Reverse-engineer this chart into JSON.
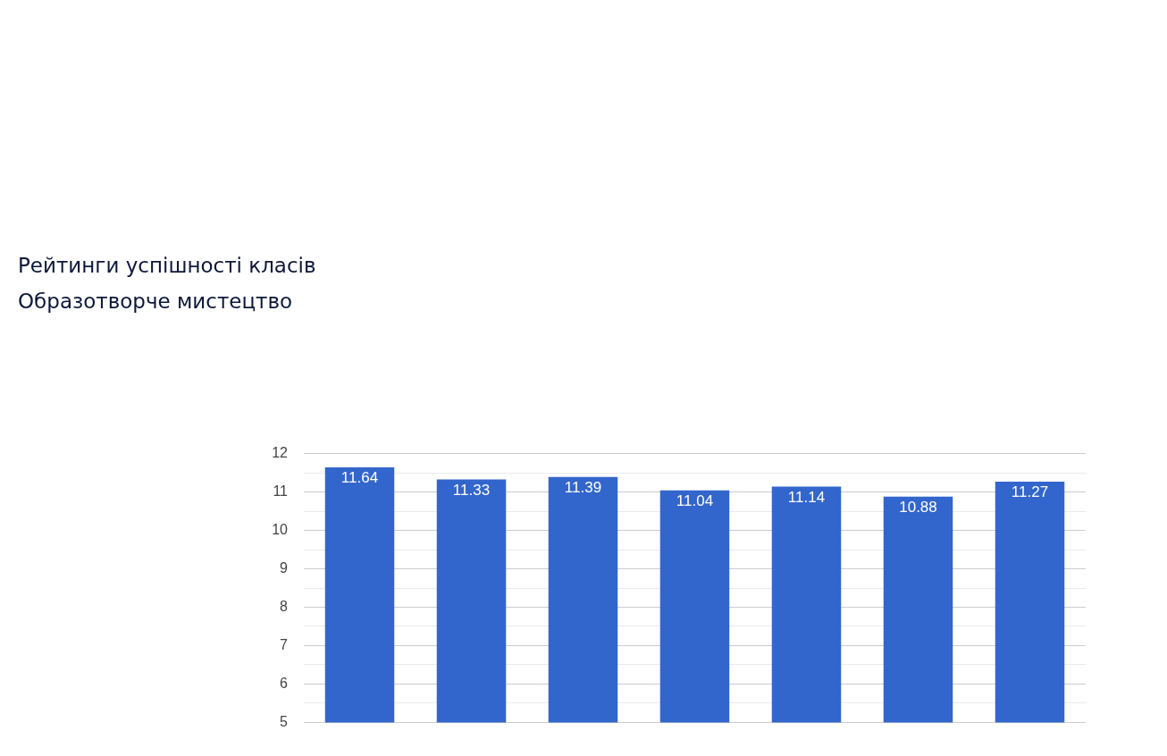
{
  "chart_data": {
    "type": "bar",
    "title": "Рейтинги успішності класів",
    "subtitle": "Образотворче мистецтво",
    "categories": [
      null,
      null,
      null,
      null,
      null,
      null,
      null
    ],
    "values": [
      11.64,
      11.33,
      11.39,
      11.04,
      11.14,
      10.88,
      11.27
    ],
    "color": "#3366cc",
    "data_labels": true,
    "grid": "y",
    "ylim": [
      5,
      12
    ],
    "yticks": [
      5,
      {
        "value": 5.5,
        "label": null
      },
      6,
      {
        "value": 6.5,
        "label": null
      },
      7,
      {
        "value": 7.5,
        "label": null
      },
      8,
      {
        "value": 8.5,
        "label": null
      },
      9,
      {
        "value": 9.5,
        "label": null
      },
      10,
      {
        "value": 10.5,
        "label": null
      },
      11,
      {
        "value": 11.5,
        "label": null
      },
      12
    ]
  }
}
